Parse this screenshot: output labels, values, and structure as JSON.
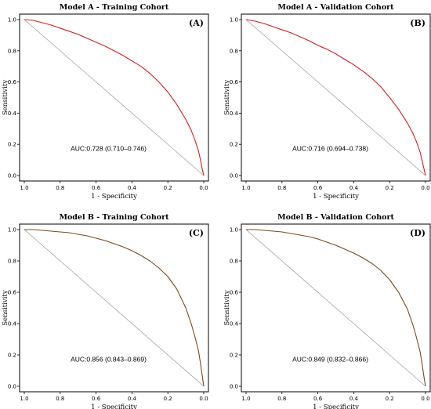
{
  "chart_data": [
    {
      "type": "line",
      "title": "Model A - Training Cohort",
      "panel_label": "(A)",
      "xlabel": "1 - Specificity",
      "ylabel": "Sensitivity",
      "xlim": [
        1.0,
        0.0
      ],
      "ylim": [
        0.0,
        1.0
      ],
      "x_ticks": [
        "1.0",
        "0.8",
        "0.6",
        "0.4",
        "0.2",
        "0.0"
      ],
      "y_ticks": [
        "0.0",
        "0.2",
        "0.4",
        "0.6",
        "0.8",
        "1.0"
      ],
      "annotation": "AUC:0.728 (0.710–0.746)",
      "grid": false,
      "series": [
        {
          "color": "#d62020",
          "x": [
            1.0,
            0.95,
            0.9,
            0.85,
            0.8,
            0.75,
            0.7,
            0.65,
            0.6,
            0.55,
            0.5,
            0.45,
            0.4,
            0.35,
            0.3,
            0.25,
            0.2,
            0.15,
            0.1,
            0.07,
            0.05,
            0.03,
            0.02,
            0.01,
            0.0
          ],
          "y": [
            1.0,
            0.995,
            0.98,
            0.965,
            0.945,
            0.925,
            0.905,
            0.88,
            0.855,
            0.83,
            0.8,
            0.77,
            0.735,
            0.7,
            0.655,
            0.6,
            0.535,
            0.455,
            0.36,
            0.29,
            0.23,
            0.16,
            0.11,
            0.05,
            0.0
          ]
        },
        {
          "color": "#999999",
          "x": [
            1.0,
            0.0
          ],
          "y": [
            1.0,
            0.0
          ]
        }
      ]
    },
    {
      "type": "line",
      "title": "Model A - Validation Cohort",
      "panel_label": "(B)",
      "xlabel": "1 - Specificity",
      "ylabel": "Sensitivity",
      "xlim": [
        1.0,
        0.0
      ],
      "ylim": [
        0.0,
        1.0
      ],
      "x_ticks": [
        "1.0",
        "0.8",
        "0.6",
        "0.4",
        "0.2",
        "0.0"
      ],
      "y_ticks": [
        "0.0",
        "0.2",
        "0.4",
        "0.6",
        "0.8",
        "1.0"
      ],
      "annotation": "AUC:0.716 (0.694–0.738)",
      "grid": false,
      "series": [
        {
          "color": "#d62020",
          "x": [
            1.0,
            0.95,
            0.9,
            0.85,
            0.8,
            0.75,
            0.7,
            0.65,
            0.6,
            0.55,
            0.5,
            0.45,
            0.4,
            0.35,
            0.3,
            0.25,
            0.2,
            0.15,
            0.1,
            0.07,
            0.05,
            0.03,
            0.02,
            0.01,
            0.0
          ],
          "y": [
            1.0,
            0.99,
            0.975,
            0.955,
            0.935,
            0.915,
            0.89,
            0.865,
            0.835,
            0.81,
            0.78,
            0.745,
            0.71,
            0.67,
            0.625,
            0.57,
            0.5,
            0.425,
            0.335,
            0.27,
            0.215,
            0.15,
            0.1,
            0.05,
            0.0
          ]
        },
        {
          "color": "#999999",
          "x": [
            1.0,
            0.0
          ],
          "y": [
            1.0,
            0.0
          ]
        }
      ]
    },
    {
      "type": "line",
      "title": "Model B - Training Cohort",
      "panel_label": "(C)",
      "xlabel": "1 - Specificity",
      "ylabel": "Sensitivity",
      "xlim": [
        1.0,
        0.0
      ],
      "ylim": [
        0.0,
        1.0
      ],
      "x_ticks": [
        "1.0",
        "0.8",
        "0.6",
        "0.4",
        "0.2",
        "0.0"
      ],
      "y_ticks": [
        "0.0",
        "0.2",
        "0.4",
        "0.6",
        "0.8",
        "1.0"
      ],
      "annotation": "AUC:0.856 (0.843–0.869)",
      "grid": false,
      "series": [
        {
          "color": "#7a4a1e",
          "x": [
            1.0,
            0.95,
            0.9,
            0.85,
            0.8,
            0.75,
            0.7,
            0.65,
            0.6,
            0.55,
            0.5,
            0.45,
            0.4,
            0.35,
            0.3,
            0.25,
            0.2,
            0.15,
            0.1,
            0.07,
            0.05,
            0.03,
            0.02,
            0.01,
            0.0
          ],
          "y": [
            1.0,
            1.0,
            0.995,
            0.99,
            0.985,
            0.98,
            0.97,
            0.96,
            0.945,
            0.93,
            0.91,
            0.89,
            0.865,
            0.835,
            0.8,
            0.755,
            0.7,
            0.62,
            0.5,
            0.4,
            0.32,
            0.23,
            0.16,
            0.08,
            0.0
          ]
        },
        {
          "color": "#999999",
          "x": [
            1.0,
            0.0
          ],
          "y": [
            1.0,
            0.0
          ]
        }
      ]
    },
    {
      "type": "line",
      "title": "Model B - Validation Cohort",
      "panel_label": "(D)",
      "xlabel": "1 - Specificity",
      "ylabel": "Sensitivity",
      "xlim": [
        1.0,
        0.0
      ],
      "ylim": [
        0.0,
        1.0
      ],
      "x_ticks": [
        "1.0",
        "0.8",
        "0.6",
        "0.4",
        "0.2",
        "0.0"
      ],
      "y_ticks": [
        "0.0",
        "0.2",
        "0.4",
        "0.6",
        "0.8",
        "1.0"
      ],
      "annotation": "AUC:0.849 (0.832–0.866)",
      "grid": false,
      "series": [
        {
          "color": "#7a4a1e",
          "x": [
            1.0,
            0.95,
            0.9,
            0.85,
            0.8,
            0.75,
            0.7,
            0.65,
            0.6,
            0.55,
            0.5,
            0.45,
            0.4,
            0.35,
            0.3,
            0.25,
            0.2,
            0.15,
            0.1,
            0.07,
            0.05,
            0.03,
            0.02,
            0.01,
            0.0
          ],
          "y": [
            1.0,
            1.0,
            0.995,
            0.99,
            0.985,
            0.975,
            0.965,
            0.955,
            0.94,
            0.92,
            0.9,
            0.875,
            0.85,
            0.82,
            0.785,
            0.74,
            0.68,
            0.6,
            0.49,
            0.39,
            0.31,
            0.22,
            0.15,
            0.07,
            0.0
          ]
        },
        {
          "color": "#999999",
          "x": [
            1.0,
            0.0
          ],
          "y": [
            1.0,
            0.0
          ]
        }
      ]
    }
  ]
}
